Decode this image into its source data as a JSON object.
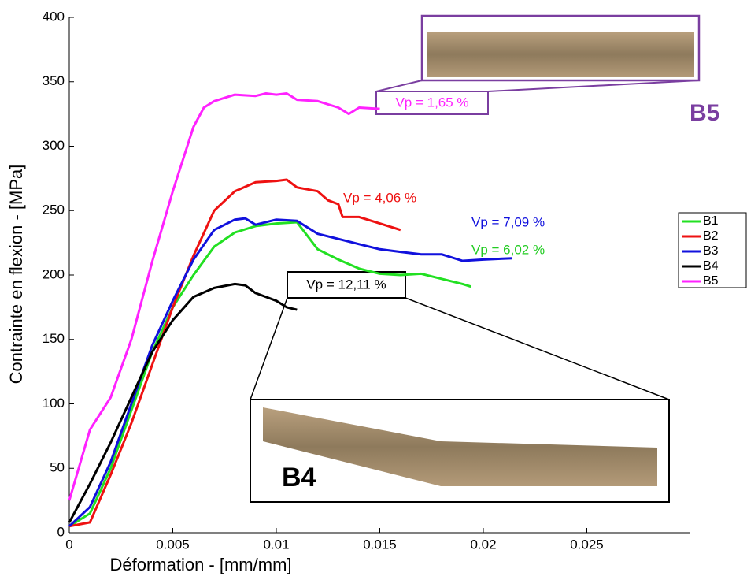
{
  "chart_data": {
    "type": "line",
    "x_label": "Déformation - [mm/mm]",
    "y_label": "Contrainte en flexion - [MPa]",
    "xlim": [
      0,
      0.03
    ],
    "xticks": [
      0,
      0.005,
      0.01,
      0.015,
      0.02,
      0.025
    ],
    "ylim": [
      0,
      400
    ],
    "yticks": [
      0,
      50,
      100,
      150,
      200,
      250,
      300,
      350,
      400
    ],
    "series": [
      {
        "name": "B1",
        "color": "#22e022",
        "x": [
          0,
          0.001,
          0.002,
          0.003,
          0.004,
          0.005,
          0.006,
          0.007,
          0.008,
          0.009,
          0.01,
          0.011,
          0.012,
          0.013,
          0.014,
          0.015,
          0.016,
          0.017,
          0.018,
          0.019,
          0.0194
        ],
        "values": [
          5,
          15,
          50,
          95,
          140,
          175,
          200,
          222,
          233,
          238,
          240,
          241,
          220,
          212,
          205,
          201,
          200,
          201,
          197,
          193,
          191
        ]
      },
      {
        "name": "B2",
        "color": "#ee1111",
        "x": [
          0,
          0.001,
          0.002,
          0.003,
          0.004,
          0.005,
          0.006,
          0.007,
          0.008,
          0.009,
          0.01,
          0.0105,
          0.011,
          0.012,
          0.0125,
          0.013,
          0.0132,
          0.014,
          0.015,
          0.016
        ],
        "values": [
          5,
          8,
          45,
          85,
          130,
          175,
          215,
          250,
          265,
          272,
          273,
          274,
          268,
          265,
          258,
          255,
          245,
          245,
          240,
          235
        ]
      },
      {
        "name": "B3",
        "color": "#1111dd",
        "x": [
          0,
          0.001,
          0.002,
          0.003,
          0.004,
          0.005,
          0.006,
          0.007,
          0.008,
          0.0085,
          0.009,
          0.01,
          0.011,
          0.012,
          0.013,
          0.014,
          0.015,
          0.016,
          0.017,
          0.018,
          0.019,
          0.02,
          0.0214
        ],
        "values": [
          5,
          20,
          55,
          100,
          145,
          180,
          212,
          235,
          243,
          244,
          239,
          243,
          242,
          232,
          228,
          224,
          220,
          218,
          216,
          216,
          211,
          212,
          213
        ]
      },
      {
        "name": "B4",
        "color": "#000000",
        "x": [
          0,
          0.001,
          0.002,
          0.003,
          0.004,
          0.005,
          0.006,
          0.007,
          0.008,
          0.0085,
          0.009,
          0.01,
          0.0105,
          0.011
        ],
        "values": [
          8,
          38,
          70,
          105,
          140,
          165,
          183,
          190,
          193,
          192,
          186,
          180,
          175,
          173
        ]
      },
      {
        "name": "B5",
        "color": "#ff22ff",
        "x": [
          0,
          0.001,
          0.002,
          0.003,
          0.004,
          0.005,
          0.006,
          0.0065,
          0.007,
          0.008,
          0.009,
          0.0095,
          0.01,
          0.0105,
          0.011,
          0.012,
          0.013,
          0.0135,
          0.014,
          0.015
        ],
        "values": [
          25,
          80,
          105,
          150,
          210,
          265,
          315,
          330,
          335,
          340,
          339,
          341,
          340,
          341,
          336,
          335,
          330,
          325,
          330,
          329
        ]
      }
    ],
    "annotations": [
      {
        "text": "Vp = 1,65 %",
        "color": "#ff22ff"
      },
      {
        "text": "Vp = 4,06 %",
        "color": "#ee1111"
      },
      {
        "text": "Vp = 7,09 %",
        "color": "#1111dd"
      },
      {
        "text": "Vp = 6,02 %",
        "color": "#22cc22"
      },
      {
        "text": "Vp = 12,11 %",
        "color": "#000000"
      },
      {
        "text": "B5",
        "color": "#7a3ea0"
      },
      {
        "text": "B4",
        "color": "#000000"
      }
    ]
  }
}
